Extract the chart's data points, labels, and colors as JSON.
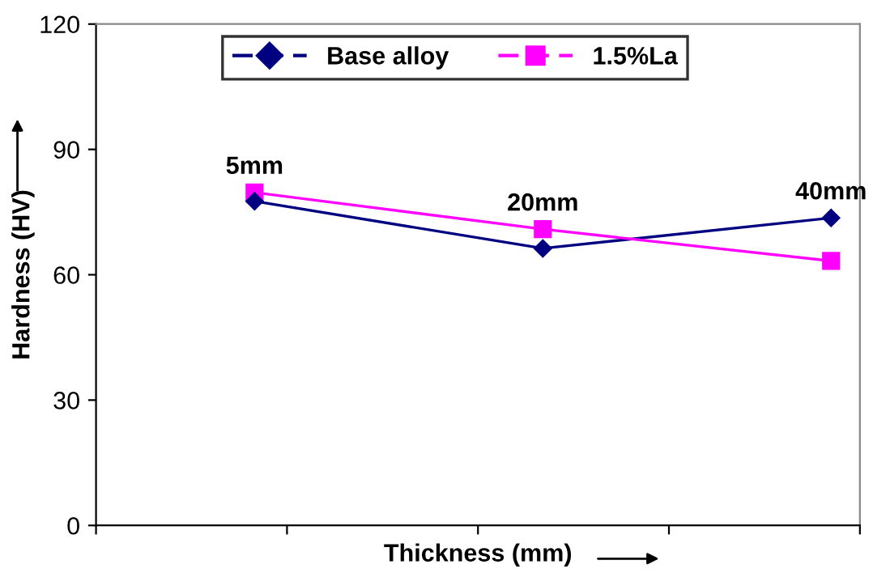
{
  "chart_data": {
    "type": "line",
    "xlabel": "Thickness (mm)",
    "ylabel": "Hardness (HV)",
    "categories": [
      null,
      null,
      null
    ],
    "series": [
      {
        "name": "Base alloy",
        "color": "#000080",
        "marker": "diamond",
        "values": [
          77.6,
          66.3,
          73.6
        ]
      },
      {
        "name": "1.5%La",
        "color": "#ff00ff",
        "marker": "square",
        "values": [
          79.7,
          70.9,
          63.3
        ]
      }
    ],
    "annotations": [
      "5mm",
      "20mm",
      "40mm"
    ],
    "ylim": [
      0,
      120
    ],
    "yticks": [
      0,
      30,
      60,
      90,
      120
    ],
    "tick_labels": "y",
    "grid": false,
    "legend": "top",
    "line_style": "solid"
  }
}
